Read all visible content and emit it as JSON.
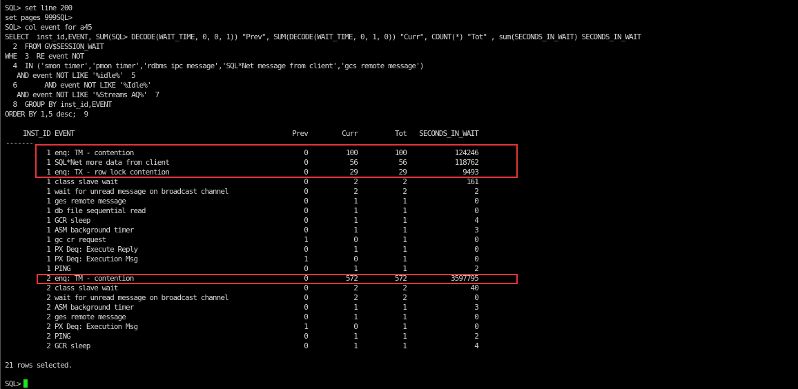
{
  "commands": [
    "SQL> set line 200",
    "set pages 999SQL>",
    "SQL> col event for a45",
    "SELECT  inst_id,EVENT, SUM(SQL> DECODE(WAIT_TIME, 0, 0, 1)) \"Prev\", SUM(DECODE(WAIT_TIME, 0, 1, 0)) \"Curr\", COUNT(*) \"Tot\" , sum(SECONDS_IN_WAIT) SECONDS_IN_WAIT",
    "  2  FROM GV$SESSION_WAIT",
    "WHE  3  RE event NOT",
    "  4  IN ('smon timer','pmon timer','rdbms ipc message','SQL*Net message from client','gcs remote message')",
    "   AND event NOT LIKE '%idle%'  5",
    "  6       AND event NOT LIKE '%Idle%'",
    "   AND event NOT LIKE '%Streams AQ%'  7",
    "  8  GROUP BY inst_id,EVENT",
    "ORDER BY 1,5 desc;  9"
  ],
  "table": {
    "headers": {
      "inst_id": "INST_ID",
      "event": "EVENT",
      "prev": "Prev",
      "curr": "Curr",
      "tot": "Tot",
      "seconds": "SECONDS_IN_WAIT"
    },
    "separator": "-------",
    "rows": [
      [
        "1",
        "enq: TM - contention",
        "0",
        "100",
        "100",
        "124246"
      ],
      [
        "1",
        "SQL*Net more data from client",
        "0",
        "56",
        "56",
        "118762"
      ],
      [
        "1",
        "enq: TX - row lock contention",
        "0",
        "29",
        "29",
        "9493"
      ],
      [
        "1",
        "class slave wait",
        "0",
        "2",
        "2",
        "161"
      ],
      [
        "1",
        "wait for unread message on broadcast channel",
        "0",
        "2",
        "2",
        "2"
      ],
      [
        "1",
        "ges remote message",
        "0",
        "1",
        "1",
        "0"
      ],
      [
        "1",
        "db file sequential read",
        "0",
        "1",
        "1",
        "0"
      ],
      [
        "1",
        "GCR sleep",
        "0",
        "1",
        "1",
        "4"
      ],
      [
        "1",
        "ASM background timer",
        "0",
        "1",
        "1",
        "3"
      ],
      [
        "1",
        "gc cr request",
        "1",
        "0",
        "1",
        "0"
      ],
      [
        "1",
        "PX Deq: Execute Reply",
        "0",
        "1",
        "1",
        "0"
      ],
      [
        "1",
        "PX Deq: Execution Msg",
        "1",
        "0",
        "1",
        "0"
      ],
      [
        "1",
        "PING",
        "0",
        "1",
        "1",
        "2"
      ],
      [
        "2",
        "enq: TM - contention",
        "0",
        "572",
        "572",
        "3597795"
      ],
      [
        "2",
        "class slave wait",
        "0",
        "2",
        "2",
        "40"
      ],
      [
        "2",
        "wait for unread message on broadcast channel",
        "0",
        "2",
        "2",
        "0"
      ],
      [
        "2",
        "ASM background timer",
        "0",
        "1",
        "1",
        "3"
      ],
      [
        "2",
        "ges remote message",
        "0",
        "1",
        "1",
        "0"
      ],
      [
        "2",
        "PX Deq: Execution Msg",
        "1",
        "0",
        "1",
        "0"
      ],
      [
        "2",
        "PING",
        "0",
        "1",
        "1",
        "2"
      ],
      [
        "2",
        "GCR sleep",
        "0",
        "1",
        "1",
        "4"
      ]
    ],
    "highlighted_rows": [
      0,
      1,
      2,
      13
    ]
  },
  "footer": "21 rows selected.",
  "prompt": "SQL>",
  "colors": {
    "background": "#000000",
    "text": "#d4d4d4",
    "highlight_box": "#e8343a",
    "cursor": "#1ee61e"
  }
}
